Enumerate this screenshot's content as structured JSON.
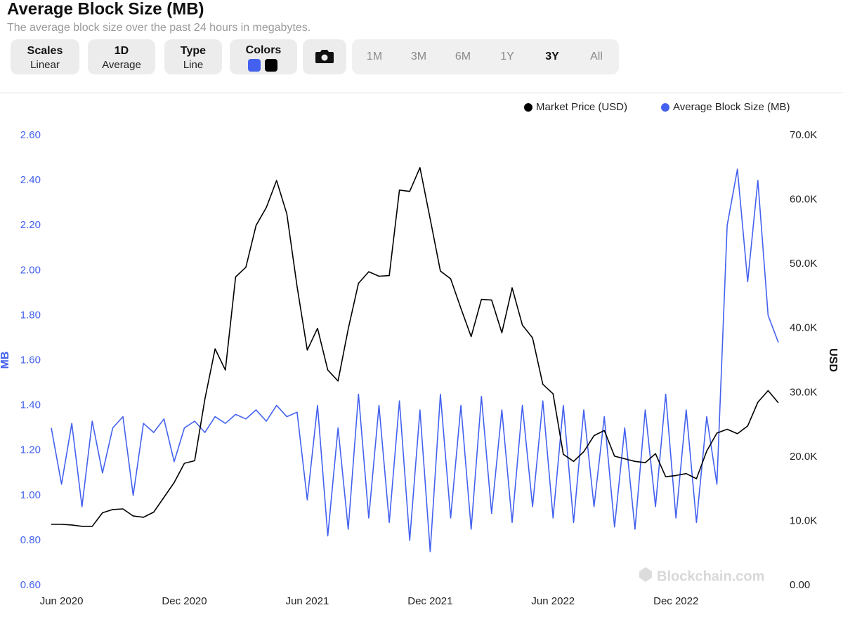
{
  "header": {
    "title": "Average Block Size (MB)",
    "subtitle": "The average block size over the past 24 hours in megabytes."
  },
  "controls": [
    {
      "title": "Scales",
      "value": "Linear"
    },
    {
      "title": "1D",
      "value": "Average"
    },
    {
      "title": "Type",
      "value": "Line"
    },
    {
      "title": "Colors"
    }
  ],
  "ranges": [
    {
      "label": "1M"
    },
    {
      "label": "3M"
    },
    {
      "label": "6M"
    },
    {
      "label": "1Y"
    },
    {
      "label": "3Y",
      "active": true
    },
    {
      "label": "All"
    }
  ],
  "watermark": "Blockchain.com",
  "chart_data": {
    "type": "line",
    "ylabel": "MB",
    "y2label": "USD",
    "categories": [
      null,
      "Jun 2020",
      null,
      null,
      null,
      null,
      null,
      null,
      null,
      null,
      null,
      null,
      null,
      "Dec 2020",
      null,
      null,
      null,
      null,
      null,
      null,
      null,
      null,
      null,
      null,
      null,
      "Jun 2021",
      null,
      null,
      null,
      null,
      null,
      null,
      null,
      null,
      null,
      null,
      null,
      "Dec 2021",
      null,
      null,
      null,
      null,
      null,
      null,
      null,
      null,
      null,
      null,
      null,
      "Jun 2022",
      null,
      null,
      null,
      null,
      null,
      null,
      null,
      null,
      null,
      null,
      null,
      "Dec 2022",
      null,
      null,
      null,
      null,
      null,
      null,
      null,
      null,
      null,
      null
    ],
    "series": [
      {
        "name": "Market Price (USD)",
        "color": "#000000",
        "axis": "y2",
        "values": [
          9500,
          9500,
          9400,
          9200,
          9200,
          11300,
          11800,
          11900,
          10800,
          10600,
          11400,
          13700,
          16000,
          19000,
          19400,
          29000,
          36800,
          33500,
          48000,
          49500,
          56000,
          58800,
          63000,
          57800,
          46500,
          36600,
          40000,
          33500,
          31800,
          39900,
          47000,
          48800,
          48100,
          48200,
          61500,
          61300,
          65000,
          57000,
          48900,
          47700,
          43100,
          38700,
          44500,
          44400,
          39300,
          46300,
          40500,
          38500,
          31300,
          29800,
          20400,
          19300,
          20800,
          23300,
          24100,
          20100,
          19700,
          19300,
          19100,
          20500,
          16900,
          17100,
          17400,
          16600,
          20900,
          23700,
          24300,
          23600,
          24800,
          28500,
          30300,
          28400
        ]
      },
      {
        "name": "Average Block Size (MB)",
        "color": "#4361ee",
        "axis": "y",
        "values": [
          1.3,
          1.05,
          1.32,
          0.95,
          1.33,
          1.1,
          1.3,
          1.35,
          1.0,
          1.32,
          1.28,
          1.34,
          1.15,
          1.3,
          1.33,
          1.28,
          1.35,
          1.32,
          1.36,
          1.34,
          1.38,
          1.33,
          1.4,
          1.35,
          1.37,
          0.98,
          1.4,
          0.82,
          1.3,
          0.85,
          1.45,
          0.9,
          1.4,
          0.88,
          1.42,
          0.8,
          1.38,
          0.75,
          1.45,
          0.9,
          1.4,
          0.85,
          1.44,
          0.92,
          1.38,
          0.88,
          1.4,
          0.95,
          1.42,
          0.9,
          1.4,
          0.88,
          1.38,
          0.95,
          1.35,
          0.86,
          1.3,
          0.85,
          1.38,
          0.95,
          1.45,
          0.9,
          1.38,
          0.88,
          1.35,
          1.05,
          2.2,
          2.45,
          1.95,
          2.4,
          1.8,
          1.68
        ]
      }
    ],
    "ylim": [
      0.6,
      2.6
    ],
    "yticks": [
      {
        "value": 0.6,
        "label": "0.60"
      },
      {
        "value": 0.8,
        "label": "0.80"
      },
      {
        "value": 1.0,
        "label": "1.00"
      },
      {
        "value": 1.2,
        "label": "1.20"
      },
      {
        "value": 1.4,
        "label": "1.40"
      },
      {
        "value": 1.6,
        "label": "1.60"
      },
      {
        "value": 1.8,
        "label": "1.80"
      },
      {
        "value": 2.0,
        "label": "2.00"
      },
      {
        "value": 2.2,
        "label": "2.20"
      },
      {
        "value": 2.4,
        "label": "2.40"
      },
      {
        "value": 2.6,
        "label": "2.60"
      }
    ],
    "y2lim": [
      0,
      70000
    ],
    "y2ticks": [
      {
        "value": 0,
        "label": "0.00"
      },
      {
        "value": 10000,
        "label": "10.0K"
      },
      {
        "value": 20000,
        "label": "20.0K"
      },
      {
        "value": 30000,
        "label": "30.0K"
      },
      {
        "value": 40000,
        "label": "40.0K"
      },
      {
        "value": 50000,
        "label": "50.0K"
      },
      {
        "value": 60000,
        "label": "60.0K"
      },
      {
        "value": 70000,
        "label": "70.0K"
      }
    ],
    "legend": "top-right",
    "grid": false
  }
}
